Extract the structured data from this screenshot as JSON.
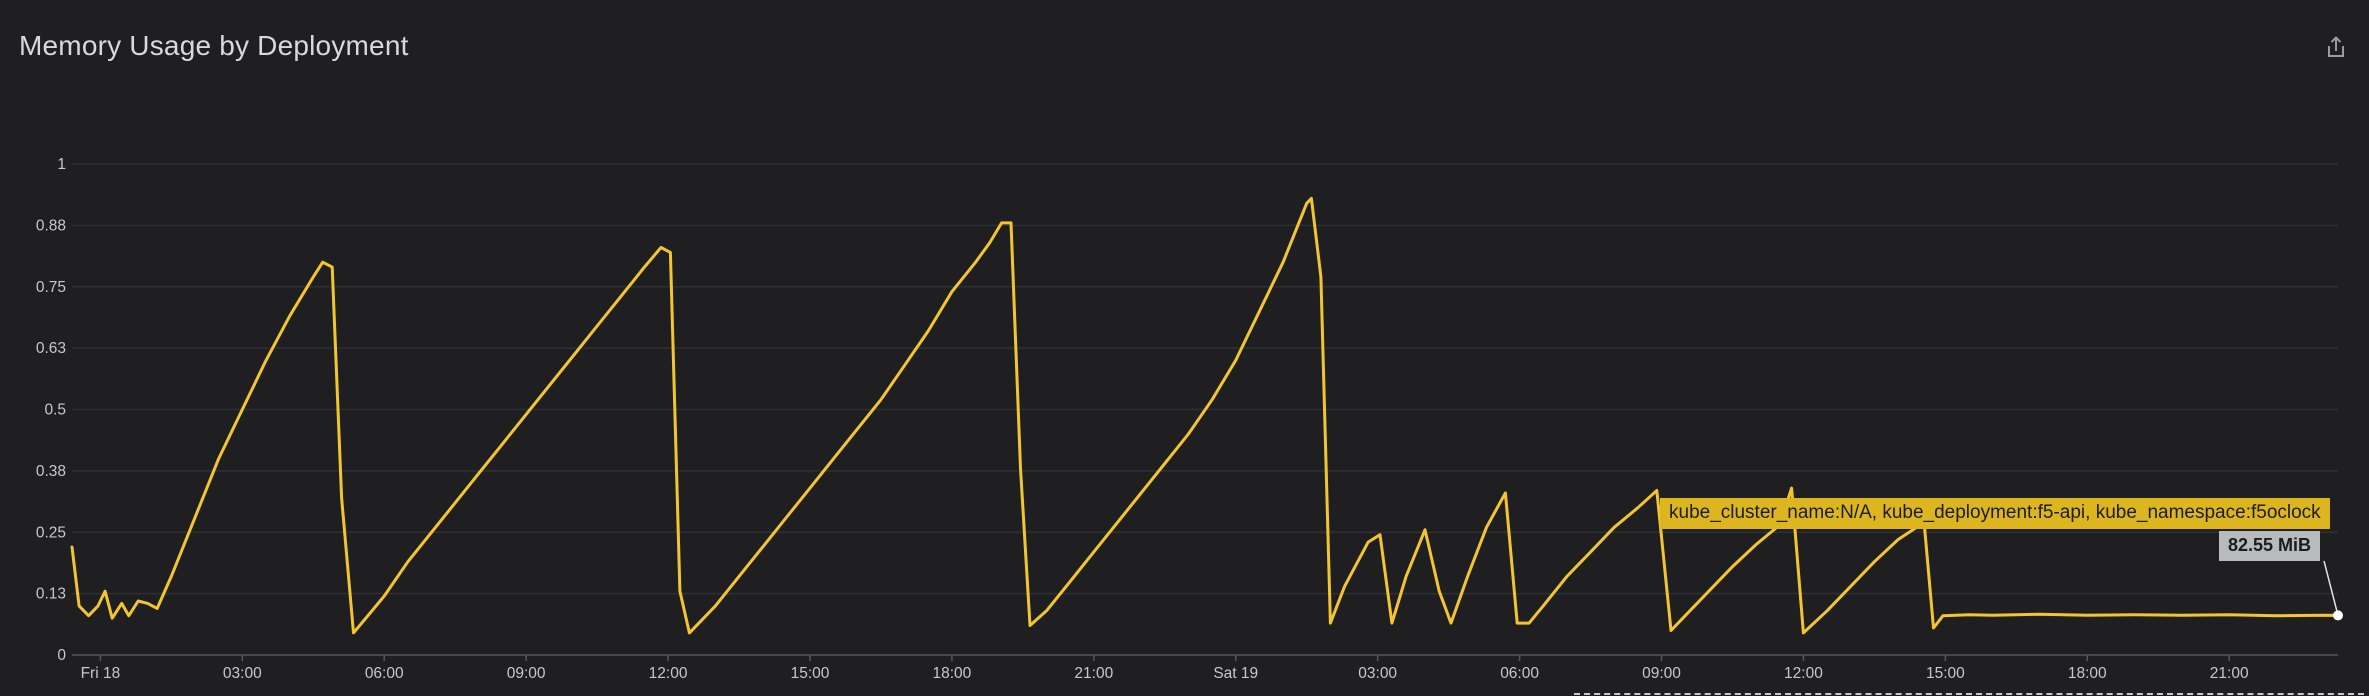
{
  "panel": {
    "title": "Memory Usage by Deployment",
    "share_icon": "share-icon"
  },
  "tooltip": {
    "series_label": "kube_cluster_name:N/A, kube_deployment:f5-api, kube_namespace:f5oclock",
    "value_label": "82.55 MiB"
  },
  "colors": {
    "background": "#1f1f21",
    "series": "#f2c531",
    "tooltip_series_bg": "#ddb61f",
    "tooltip_value_bg": "#b9babd"
  },
  "chart_data": {
    "type": "line",
    "title": "Memory Usage by Deployment",
    "xlabel": "",
    "ylabel": "",
    "x_unit": "hours since Fri 18 00:00",
    "xlim": [
      -0.6,
      47.3
    ],
    "ylim": [
      0,
      1
    ],
    "y_ticks": [
      "0",
      "0.13",
      "0.25",
      "0.38",
      "0.5",
      "0.63",
      "0.75",
      "0.88",
      "1"
    ],
    "x_ticks": [
      {
        "label": "Fri 18",
        "hour": 0
      },
      {
        "label": "03:00",
        "hour": 3
      },
      {
        "label": "06:00",
        "hour": 6
      },
      {
        "label": "09:00",
        "hour": 9
      },
      {
        "label": "12:00",
        "hour": 12
      },
      {
        "label": "15:00",
        "hour": 15
      },
      {
        "label": "18:00",
        "hour": 18
      },
      {
        "label": "21:00",
        "hour": 21
      },
      {
        "label": "Sat 19",
        "hour": 24
      },
      {
        "label": "03:00",
        "hour": 27
      },
      {
        "label": "06:00",
        "hour": 30
      },
      {
        "label": "09:00",
        "hour": 33
      },
      {
        "label": "12:00",
        "hour": 36
      },
      {
        "label": "15:00",
        "hour": 39
      },
      {
        "label": "18:00",
        "hour": 42
      },
      {
        "label": "21:00",
        "hour": 45
      }
    ],
    "grid": true,
    "series": [
      {
        "name": "kube_cluster_name:N/A, kube_deployment:f5-api, kube_namespace:f5oclock",
        "points": [
          [
            -0.6,
            0.22
          ],
          [
            -0.45,
            0.1
          ],
          [
            -0.25,
            0.08
          ],
          [
            -0.05,
            0.1
          ],
          [
            0.1,
            0.13
          ],
          [
            0.25,
            0.075
          ],
          [
            0.45,
            0.105
          ],
          [
            0.6,
            0.08
          ],
          [
            0.8,
            0.11
          ],
          [
            1.0,
            0.105
          ],
          [
            1.2,
            0.095
          ],
          [
            1.5,
            0.16
          ],
          [
            2.0,
            0.28
          ],
          [
            2.5,
            0.4
          ],
          [
            3.0,
            0.5
          ],
          [
            3.5,
            0.6
          ],
          [
            4.0,
            0.69
          ],
          [
            4.5,
            0.77
          ],
          [
            4.7,
            0.8
          ],
          [
            4.9,
            0.79
          ],
          [
            5.1,
            0.32
          ],
          [
            5.35,
            0.045
          ],
          [
            6.0,
            0.12
          ],
          [
            6.5,
            0.19
          ],
          [
            7.0,
            0.25
          ],
          [
            7.5,
            0.31
          ],
          [
            8.0,
            0.37
          ],
          [
            8.5,
            0.43
          ],
          [
            9.0,
            0.49
          ],
          [
            9.5,
            0.55
          ],
          [
            10.0,
            0.61
          ],
          [
            10.5,
            0.67
          ],
          [
            11.0,
            0.73
          ],
          [
            11.5,
            0.79
          ],
          [
            11.85,
            0.83
          ],
          [
            12.05,
            0.82
          ],
          [
            12.25,
            0.13
          ],
          [
            12.45,
            0.045
          ],
          [
            13.0,
            0.1
          ],
          [
            13.5,
            0.16
          ],
          [
            14.0,
            0.22
          ],
          [
            14.5,
            0.28
          ],
          [
            15.0,
            0.34
          ],
          [
            15.5,
            0.4
          ],
          [
            16.0,
            0.46
          ],
          [
            16.5,
            0.52
          ],
          [
            17.0,
            0.59
          ],
          [
            17.5,
            0.66
          ],
          [
            18.0,
            0.74
          ],
          [
            18.5,
            0.8
          ],
          [
            18.8,
            0.84
          ],
          [
            19.05,
            0.88
          ],
          [
            19.25,
            0.88
          ],
          [
            19.45,
            0.38
          ],
          [
            19.65,
            0.06
          ],
          [
            20.0,
            0.09
          ],
          [
            20.5,
            0.15
          ],
          [
            21.0,
            0.21
          ],
          [
            21.5,
            0.27
          ],
          [
            22.0,
            0.33
          ],
          [
            22.5,
            0.39
          ],
          [
            23.0,
            0.45
          ],
          [
            23.5,
            0.52
          ],
          [
            24.0,
            0.6
          ],
          [
            24.5,
            0.7
          ],
          [
            25.0,
            0.8
          ],
          [
            25.5,
            0.92
          ],
          [
            25.6,
            0.93
          ],
          [
            25.8,
            0.77
          ],
          [
            26.0,
            0.065
          ],
          [
            26.3,
            0.14
          ],
          [
            26.8,
            0.23
          ],
          [
            27.05,
            0.245
          ],
          [
            27.3,
            0.065
          ],
          [
            27.6,
            0.16
          ],
          [
            28.0,
            0.255
          ],
          [
            28.3,
            0.13
          ],
          [
            28.55,
            0.065
          ],
          [
            28.9,
            0.16
          ],
          [
            29.3,
            0.26
          ],
          [
            29.7,
            0.33
          ],
          [
            29.95,
            0.065
          ],
          [
            30.2,
            0.065
          ],
          [
            30.5,
            0.1
          ],
          [
            31.0,
            0.16
          ],
          [
            31.5,
            0.21
          ],
          [
            32.0,
            0.26
          ],
          [
            32.5,
            0.3
          ],
          [
            32.9,
            0.335
          ],
          [
            33.2,
            0.05
          ],
          [
            33.5,
            0.08
          ],
          [
            34.0,
            0.13
          ],
          [
            34.5,
            0.18
          ],
          [
            35.0,
            0.225
          ],
          [
            35.5,
            0.265
          ],
          [
            35.75,
            0.34
          ],
          [
            36.0,
            0.045
          ],
          [
            36.5,
            0.09
          ],
          [
            37.0,
            0.14
          ],
          [
            37.5,
            0.19
          ],
          [
            38.0,
            0.235
          ],
          [
            38.55,
            0.27
          ],
          [
            38.75,
            0.055
          ],
          [
            38.95,
            0.08
          ],
          [
            39.5,
            0.082
          ],
          [
            40.0,
            0.081
          ],
          [
            41.0,
            0.083
          ],
          [
            42.0,
            0.081
          ],
          [
            43.0,
            0.082
          ],
          [
            44.0,
            0.081
          ],
          [
            45.0,
            0.082
          ],
          [
            46.0,
            0.08
          ],
          [
            47.0,
            0.081
          ],
          [
            47.3,
            0.0806
          ]
        ]
      }
    ]
  }
}
